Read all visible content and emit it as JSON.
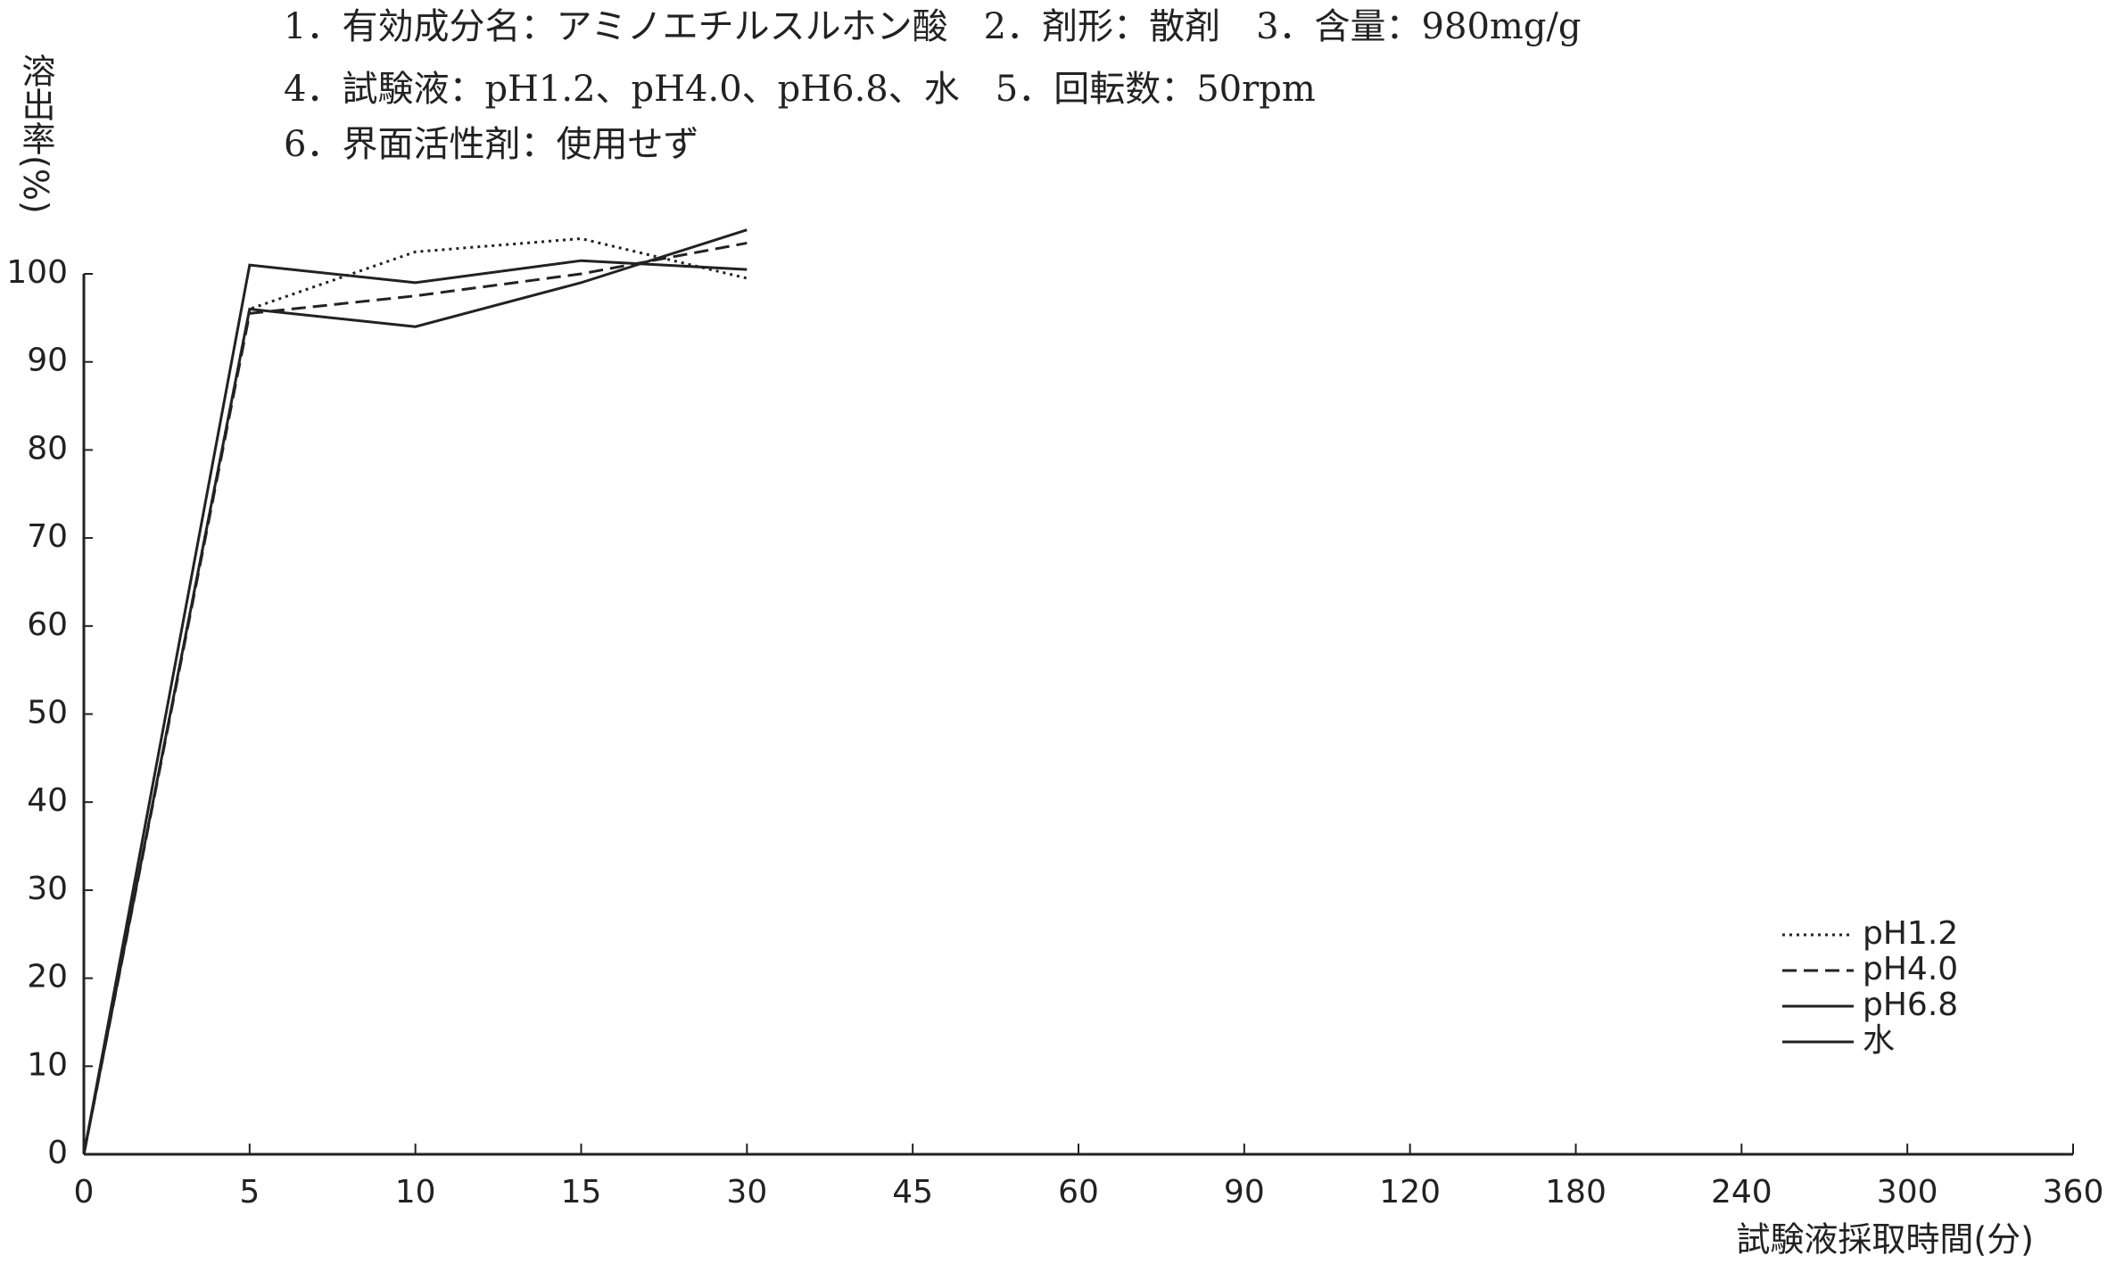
{
  "chart_data": {
    "type": "line",
    "annotations": [
      "1．有効成分名：アミノエチルスルホン酸　2．剤形：散剤　3．含量：980mg/g",
      "4．試験液：pH1.2、pH4.0、pH6.8、水　5．回転数：50rpm",
      "6．界面活性剤：使用せず"
    ],
    "y_label": "溶出率(%)",
    "x_label": "試験液採取時間(分)",
    "categories": [
      "0",
      "5",
      "10",
      "15",
      "30",
      "45",
      "60",
      "90",
      "120",
      "180",
      "240",
      "300",
      "360"
    ],
    "series": [
      {
        "name": "pH1.2",
        "color": "#222222",
        "dash": "dotted",
        "values": [
          0,
          96,
          102.5,
          104,
          99.5,
          null,
          null,
          null,
          null,
          null,
          null,
          null,
          null
        ]
      },
      {
        "name": "pH4.0",
        "color": "#222222",
        "dash": "dashed",
        "values": [
          0,
          95.5,
          97.5,
          100,
          103.5,
          null,
          null,
          null,
          null,
          null,
          null,
          null,
          null
        ]
      },
      {
        "name": "pH6.8",
        "color": "#222222",
        "dash": "solid",
        "values": [
          0,
          101,
          99,
          101.5,
          100.5,
          null,
          null,
          null,
          null,
          null,
          null,
          null,
          null
        ]
      },
      {
        "name": "水",
        "color": "#222222",
        "dash": "solid",
        "values": [
          0,
          96,
          94,
          99,
          105,
          null,
          null,
          null,
          null,
          null,
          null,
          null,
          null
        ]
      }
    ],
    "ylim": [
      0,
      100
    ],
    "yticks": [
      0,
      10,
      20,
      30,
      40,
      50,
      60,
      70,
      80,
      90,
      100
    ],
    "grid": false,
    "legend": "lower-right"
  }
}
